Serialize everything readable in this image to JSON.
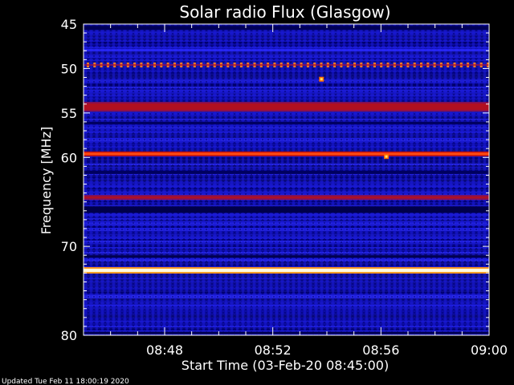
{
  "chart_data": {
    "type": "heatmap",
    "title": "Solar radio Flux (Glasgow)",
    "ylabel": "Frequency [MHz]",
    "xlabel": "Start Time (03-Feb-20 08:45:00)",
    "footer": "Updated Tue Feb 11 18:00:19 2020",
    "x_start": "08:45",
    "x_end": "09:00",
    "x_ticks": [
      "08:48",
      "08:52",
      "08:56",
      "09:00"
    ],
    "x_tick_minutes": [
      3,
      7,
      11,
      15
    ],
    "x_range_minutes": [
      0,
      15
    ],
    "y_range_mhz": [
      45,
      80
    ],
    "y_ticks": [
      45,
      50,
      55,
      60,
      70,
      80
    ],
    "y_reversed": true,
    "colormap": [
      "#000060",
      "#1a1aff",
      "#6a1a8a",
      "#c01010",
      "#ff3a00",
      "#ffd040",
      "#ffffe0"
    ],
    "emission_bands": [
      {
        "freq_mhz": 49.6,
        "level": 0.75,
        "dotted": true
      },
      {
        "freq_mhz": 54.3,
        "level": 0.55,
        "dotted": false
      },
      {
        "freq_mhz": 59.6,
        "level": 0.85,
        "dotted": false
      },
      {
        "freq_mhz": 64.5,
        "level": 0.55,
        "dotted": false
      },
      {
        "freq_mhz": 72.7,
        "level": 1.0,
        "dotted": false
      }
    ],
    "bursts": [
      {
        "time_min": 8.8,
        "freq_mhz": 51.2
      },
      {
        "time_min": 11.2,
        "freq_mhz": 59.9
      }
    ]
  }
}
